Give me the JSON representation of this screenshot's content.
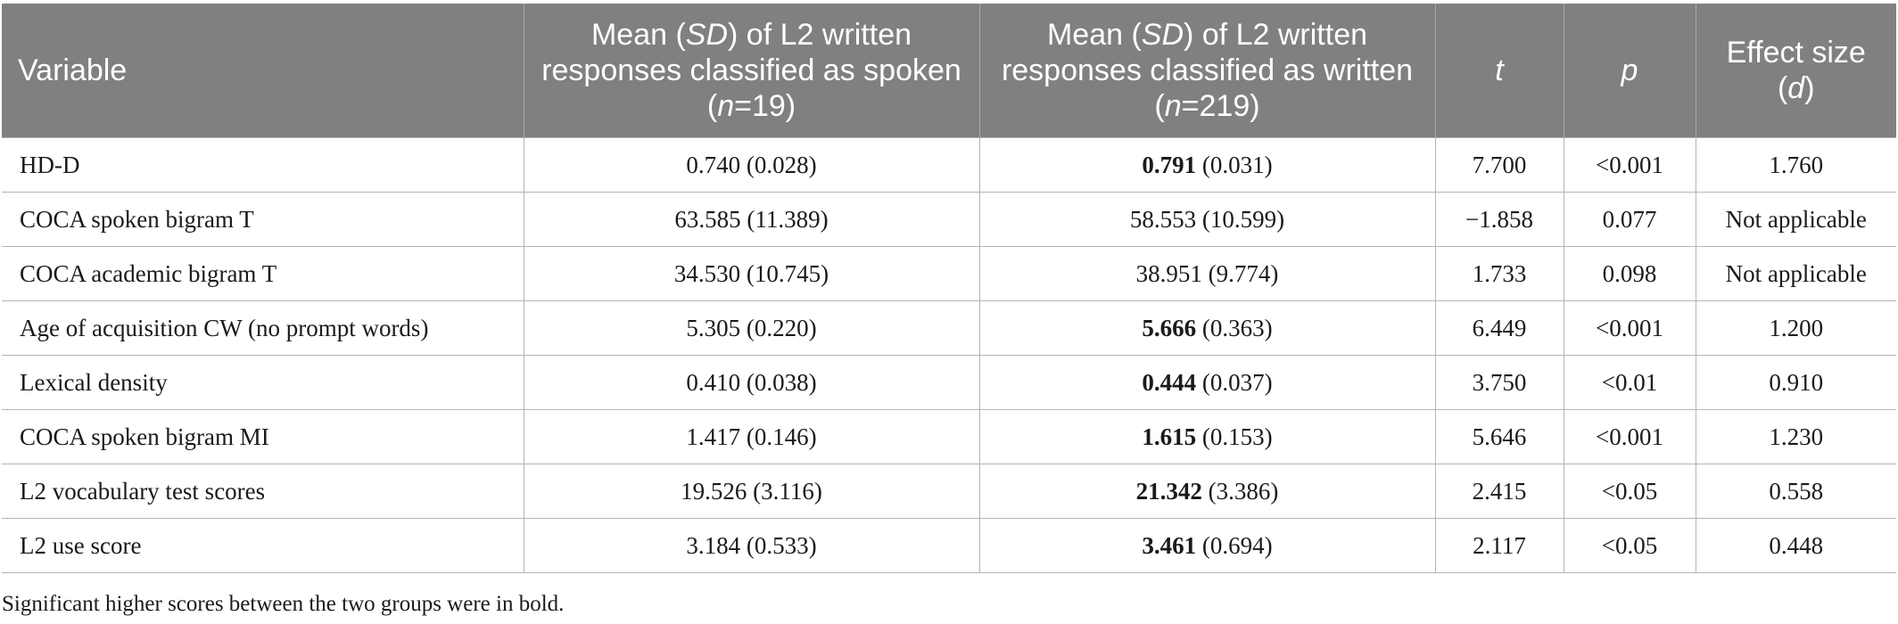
{
  "table": {
    "headers": {
      "variable": "Variable",
      "spoken_prefix": "Mean (",
      "spoken_sd": "SD",
      "spoken_mid": ") of L2 written responses classified as spoken (",
      "spoken_n": "n",
      "spoken_suffix": "=19)",
      "written_prefix": "Mean (",
      "written_sd": "SD",
      "written_mid": ") of L2 written responses classified as written (",
      "written_n": "n",
      "written_suffix": "=219)",
      "t": "t",
      "p": "p",
      "effect_prefix": "Effect size (",
      "effect_d": "d",
      "effect_suffix": ")"
    },
    "rows": [
      {
        "variable": "HD-D",
        "spoken_mean": "0.740",
        "spoken_sd": "(0.028)",
        "written_mean": "0.791",
        "written_sd": "(0.031)",
        "written_bold": true,
        "t": "7.700",
        "p": "<0.001",
        "effect": "1.760"
      },
      {
        "variable": "COCA spoken bigram T",
        "spoken_mean": "63.585",
        "spoken_sd": "(11.389)",
        "written_mean": "58.553",
        "written_sd": "(10.599)",
        "written_bold": false,
        "t": "−1.858",
        "p": "0.077",
        "effect": "Not applicable"
      },
      {
        "variable": "COCA academic bigram T",
        "spoken_mean": "34.530",
        "spoken_sd": "(10.745)",
        "written_mean": "38.951",
        "written_sd": "(9.774)",
        "written_bold": false,
        "t": "1.733",
        "p": "0.098",
        "effect": "Not applicable"
      },
      {
        "variable": "Age of acquisition CW (no prompt words)",
        "spoken_mean": "5.305",
        "spoken_sd": "(0.220)",
        "written_mean": "5.666",
        "written_sd": "(0.363)",
        "written_bold": true,
        "t": "6.449",
        "p": "<0.001",
        "effect": "1.200"
      },
      {
        "variable": "Lexical density",
        "spoken_mean": "0.410",
        "spoken_sd": "(0.038)",
        "written_mean": "0.444",
        "written_sd": "(0.037)",
        "written_bold": true,
        "t": "3.750",
        "p": "<0.01",
        "effect": "0.910"
      },
      {
        "variable": "COCA spoken bigram MI",
        "spoken_mean": "1.417",
        "spoken_sd": "(0.146)",
        "written_mean": "1.615",
        "written_sd": "(0.153)",
        "written_bold": true,
        "t": "5.646",
        "p": "<0.001",
        "effect": "1.230"
      },
      {
        "variable": "L2 vocabulary test scores",
        "spoken_mean": "19.526",
        "spoken_sd": "(3.116)",
        "written_mean": "21.342",
        "written_sd": "(3.386)",
        "written_bold": true,
        "t": "2.415",
        "p": "<0.05",
        "effect": "0.558"
      },
      {
        "variable": "L2 use score",
        "spoken_mean": "3.184",
        "spoken_sd": "(0.533)",
        "written_mean": "3.461",
        "written_sd": "(0.694)",
        "written_bold": true,
        "t": "2.117",
        "p": "<0.05",
        "effect": "0.448"
      }
    ]
  },
  "footnote": "Significant higher scores between the two groups were in bold.",
  "colors": {
    "header_bg": "#808080",
    "header_text": "#ffffff",
    "grid": "#b5b5b5"
  }
}
